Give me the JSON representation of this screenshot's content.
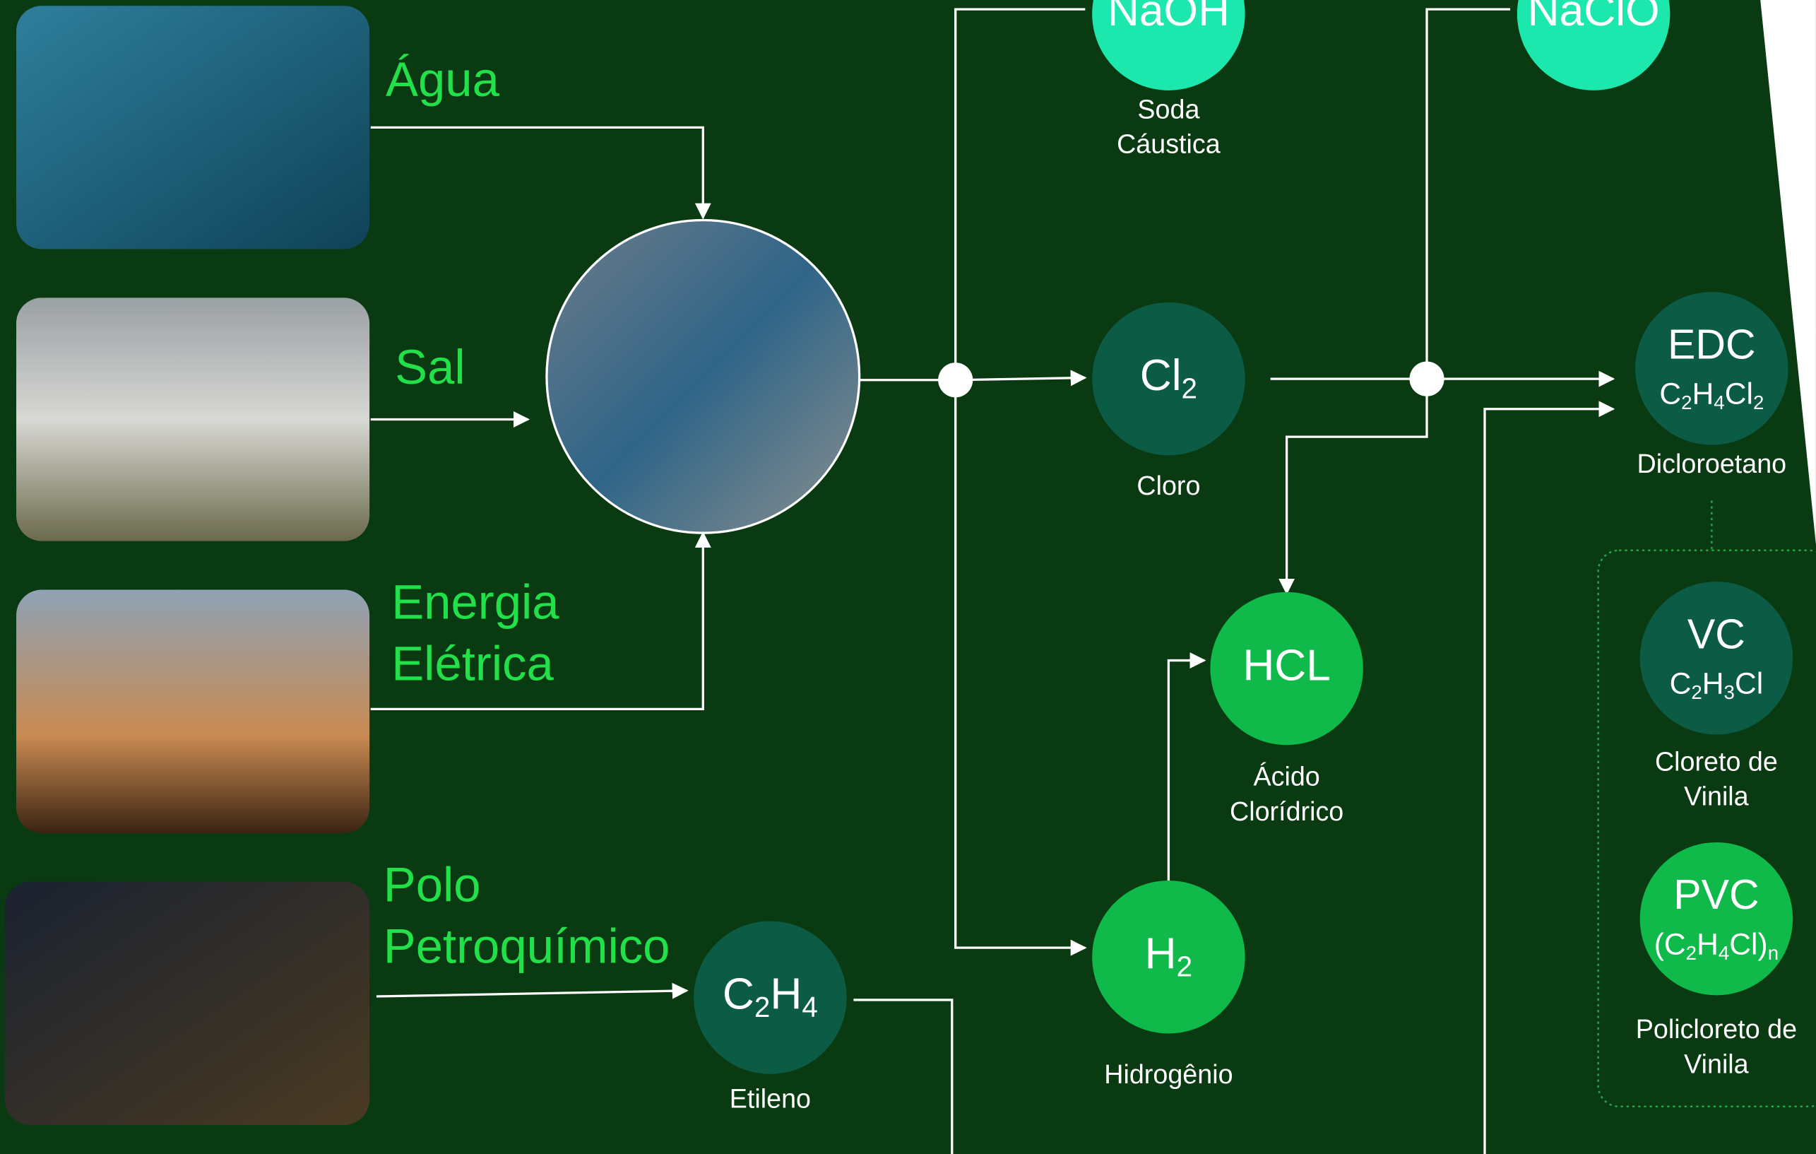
{
  "inputs": [
    {
      "lines": [
        "Água"
      ]
    },
    {
      "lines": [
        "Sal"
      ]
    },
    {
      "lines": [
        "Energia",
        "Elétrica"
      ]
    },
    {
      "lines": [
        "Polo",
        "Petroquímico"
      ]
    }
  ],
  "nodes": [
    {
      "label": "NaOH",
      "name": [
        "Soda",
        "Cáustica"
      ]
    },
    {
      "label": "NaClO"
    },
    {
      "formula": [
        "Cl",
        "2"
      ],
      "name": [
        "Cloro"
      ]
    },
    {
      "label": "EDC",
      "formula": [
        "C",
        "2",
        "H",
        "4",
        "Cl",
        "2"
      ],
      "name": [
        "Dicloroetano"
      ]
    },
    {
      "label": "HCL",
      "name": [
        "Ácido",
        "Clorídrico"
      ]
    },
    {
      "formula": [
        "H",
        "2"
      ],
      "name": [
        "Hidrogênio"
      ]
    },
    {
      "formula": [
        "C",
        "2",
        "H",
        "4"
      ],
      "name": [
        "Etileno"
      ]
    },
    {
      "label": "VC",
      "formula": [
        "C",
        "2",
        "H",
        "3",
        "Cl"
      ],
      "name": [
        "Cloreto de",
        "Vinila"
      ]
    },
    {
      "label": "PVC",
      "formula": [
        "(C",
        "2",
        "H",
        "4",
        "Cl)",
        "n"
      ],
      "name": [
        "Policloreto de",
        "Vinila"
      ]
    }
  ]
}
